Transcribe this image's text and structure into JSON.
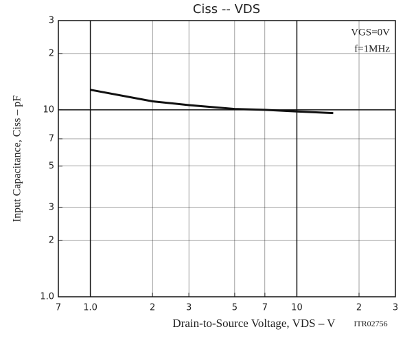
{
  "chart_data": {
    "type": "line",
    "title": "Ciss -- VDS",
    "annotations": [
      "VGS=0V",
      "f=1MHz"
    ],
    "xlabel": "Drain-to-Source Voltage, VDS  –  V",
    "ylabel": "Input Capacitance, Ciss  –  pF",
    "code": "ITR02756",
    "x": [
      1,
      2,
      3,
      5,
      7,
      10,
      15
    ],
    "series": [
      {
        "name": "Ciss",
        "color": "#111111",
        "values": [
          12.8,
          11.1,
          10.6,
          10.1,
          10.0,
          9.8,
          9.6
        ]
      }
    ],
    "log_x": true,
    "log_y": true,
    "grid": true,
    "xlim": [
      0.7,
      30
    ],
    "xticks": [
      {
        "value": 0.7,
        "label": "7"
      },
      {
        "value": 1,
        "label": "1.0"
      },
      2,
      3,
      5,
      7,
      10,
      {
        "value": 20,
        "label": "2"
      },
      {
        "value": 30,
        "label": "3"
      }
    ],
    "ylim": [
      1,
      30
    ],
    "yticks": [
      {
        "value": 1,
        "label": "1.0"
      },
      2,
      3,
      5,
      7,
      10,
      {
        "value": 20,
        "label": "2"
      },
      {
        "value": 30,
        "label": "3"
      }
    ]
  }
}
